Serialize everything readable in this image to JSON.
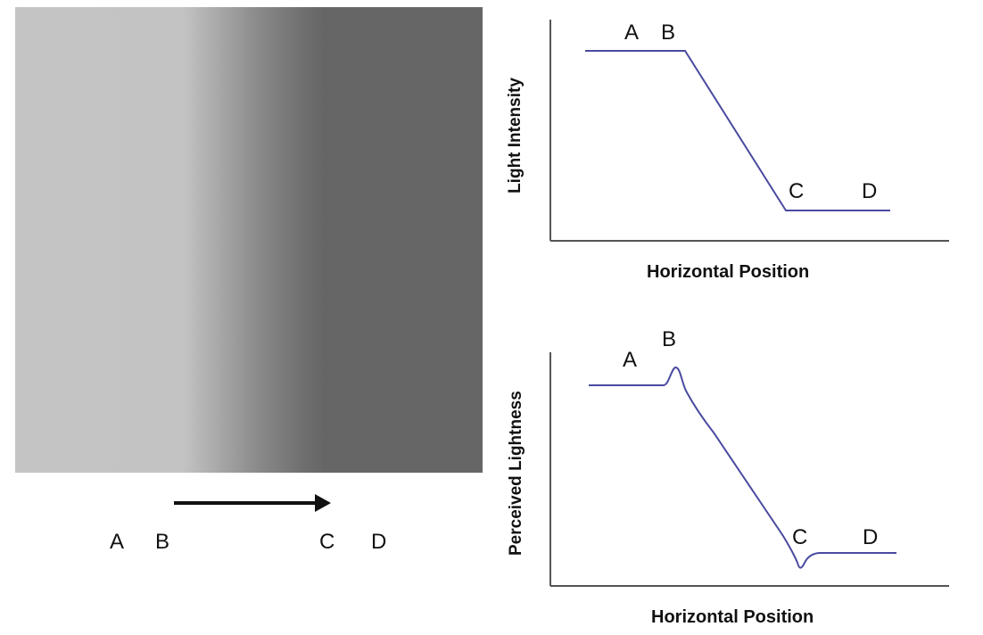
{
  "image": {
    "points": {
      "a": "A",
      "b": "B",
      "c": "C",
      "d": "D"
    }
  },
  "graphs": {
    "intensity": {
      "ylabel": "Light Intensity",
      "xlabel": "Horizontal Position",
      "points": {
        "a": "A",
        "b": "B",
        "c": "C",
        "d": "D"
      },
      "line_color": "#4a4aa0"
    },
    "lightness": {
      "ylabel": "Perceived Lightness",
      "xlabel": "Horizontal Position",
      "points": {
        "a": "A",
        "b": "B",
        "c": "C",
        "d": "D"
      },
      "line_color": "#4a4aa0"
    }
  }
}
